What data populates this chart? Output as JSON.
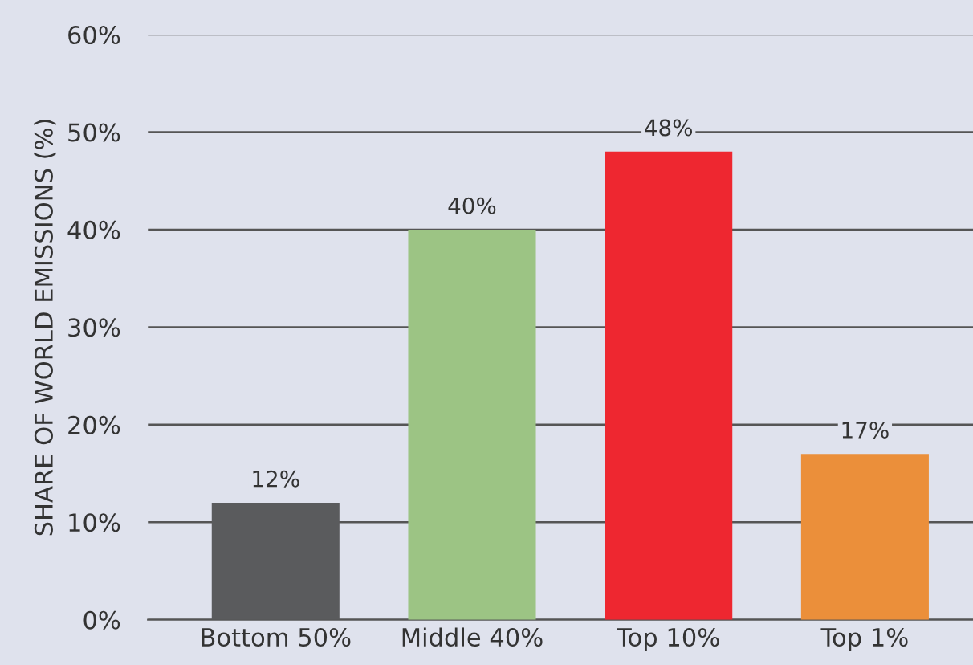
{
  "chart_data": {
    "type": "bar",
    "ylabel": "SHARE OF WORLD EMISSIONS (%)",
    "categories": [
      "Bottom 50%",
      "Middle 40%",
      "Top 10%",
      "Top 1%"
    ],
    "values": [
      12,
      40,
      48,
      17
    ],
    "colors": [
      "#5a5b5d",
      "#9cc484",
      "#ee2730",
      "#eb8f3a"
    ],
    "value_labels": [
      "12%",
      "40%",
      "48%",
      "17%"
    ],
    "ylim": [
      0,
      60
    ],
    "yticks": [
      {
        "value": 0,
        "label": "0%"
      },
      {
        "value": 10,
        "label": "10%"
      },
      {
        "value": 20,
        "label": "20%"
      },
      {
        "value": 30,
        "label": "30%"
      },
      {
        "value": 40,
        "label": "40%"
      },
      {
        "value": 50,
        "label": "50%"
      },
      {
        "value": 60,
        "label": "60%"
      }
    ],
    "grid": "y",
    "legend": false
  }
}
